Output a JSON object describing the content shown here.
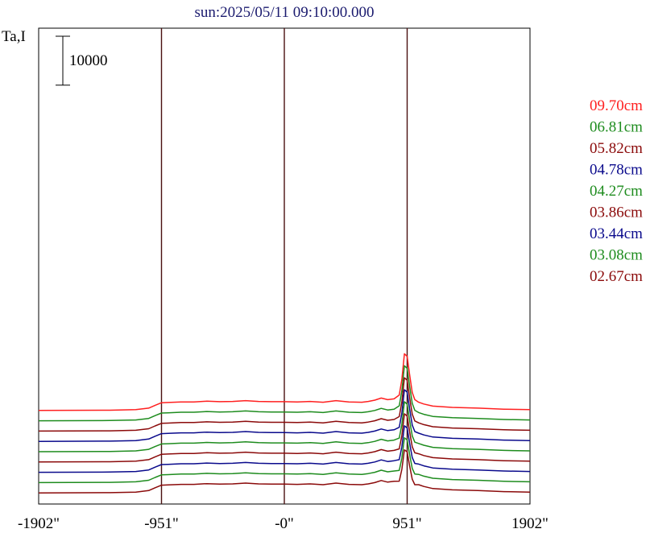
{
  "chart_data": {
    "type": "line",
    "title": "sun:2025/05/11 09:10:00.000",
    "ylabel": "Ta,I",
    "xlabel": "",
    "x_tick_labels": [
      "-1902\"",
      "-951\"",
      "-0\"",
      "951\"",
      "1902\""
    ],
    "x_ticks": [
      -1902,
      -951,
      0,
      951,
      1902
    ],
    "xlim": [
      -1902,
      1902
    ],
    "vlines": [
      -951,
      0,
      951
    ],
    "scale_bar": {
      "label": "10000",
      "value": 10000
    },
    "grid": false,
    "legend_position": "right",
    "series": [
      {
        "name": "09.70cm",
        "color": "#ff2020",
        "offset": 36000
      },
      {
        "name": "06.81cm",
        "color": "#1e8c1e",
        "offset": 32000
      },
      {
        "name": "05.82cm",
        "color": "#8b0a0a",
        "offset": 28000
      },
      {
        "name": "04.78cm",
        "color": "#0a0a8c",
        "offset": 24000
      },
      {
        "name": "04.27cm",
        "color": "#1e8c1e",
        "offset": 20000
      },
      {
        "name": "03.86cm",
        "color": "#8b0a0a",
        "offset": 16000
      },
      {
        "name": "03.44cm",
        "color": "#0a0a8c",
        "offset": 12000
      },
      {
        "name": "03.08cm",
        "color": "#1e8c1e",
        "offset": 8000
      },
      {
        "name": "02.67cm",
        "color": "#8b0a0a",
        "offset": 4000
      }
    ],
    "profile": {
      "x": [
        -1902,
        -1350,
        -1150,
        -1050,
        -1000,
        -951,
        -900,
        -800,
        -700,
        -600,
        -500,
        -400,
        -300,
        -200,
        -100,
        0,
        100,
        200,
        300,
        400,
        500,
        600,
        650,
        700,
        750,
        800,
        850,
        890,
        910,
        930,
        951,
        970,
        990,
        1010,
        1040,
        1080,
        1150,
        1300,
        1500,
        1700,
        1902
      ],
      "y": [
        0,
        100,
        300,
        900,
        2000,
        3000,
        3100,
        3300,
        3300,
        3600,
        3400,
        3500,
        3800,
        3500,
        3400,
        3400,
        3300,
        3500,
        3200,
        3800,
        3300,
        3200,
        3500,
        4000,
        4800,
        4200,
        4500,
        6000,
        12000,
        22000,
        21000,
        14000,
        7000,
        4200,
        3200,
        2500,
        1700,
        1200,
        900,
        500,
        300
      ]
    }
  },
  "legend": {
    "items": [
      "09.70cm",
      "06.81cm",
      "05.82cm",
      "04.78cm",
      "04.27cm",
      "03.86cm",
      "03.44cm",
      "03.08cm",
      "02.67cm"
    ]
  }
}
